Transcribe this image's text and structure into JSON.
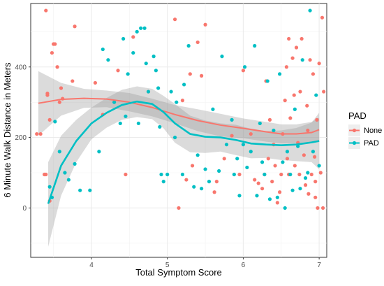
{
  "chart_data": {
    "type": "scatter",
    "title": "",
    "xlabel": "Total Symptom Score",
    "ylabel": "6 Minute Walk Distance in Meters",
    "xlim": [
      3.2,
      7.1
    ],
    "ylim": [
      -140,
      580
    ],
    "x_ticks": [
      4,
      5,
      6,
      7
    ],
    "y_ticks": [
      0,
      200,
      400
    ],
    "grid": true,
    "legend": {
      "title": "PAD",
      "placement": "right",
      "entries": [
        "None",
        "PAD"
      ]
    },
    "colors": {
      "None": "#F8766D",
      "PAD": "#00BFC4",
      "band": "#999999"
    },
    "series": [
      {
        "name": "None",
        "points": [
          [
            3.28,
            210
          ],
          [
            3.33,
            210
          ],
          [
            3.38,
            95
          ],
          [
            3.4,
            95
          ],
          [
            3.4,
            560
          ],
          [
            3.42,
            325
          ],
          [
            3.42,
            320
          ],
          [
            3.45,
            250
          ],
          [
            3.45,
            20
          ],
          [
            3.48,
            440
          ],
          [
            3.5,
            465
          ],
          [
            3.52,
            465
          ],
          [
            3.55,
            400
          ],
          [
            3.58,
            300
          ],
          [
            3.6,
            340
          ],
          [
            3.62,
            310
          ],
          [
            3.75,
            360
          ],
          [
            3.78,
            515
          ],
          [
            4.05,
            355
          ],
          [
            4.15,
            265
          ],
          [
            4.35,
            390
          ],
          [
            4.45,
            95
          ],
          [
            4.55,
            485
          ],
          [
            4.75,
            330
          ],
          [
            5.1,
            535
          ],
          [
            5.15,
            0
          ],
          [
            5.2,
            305
          ],
          [
            5.25,
            80
          ],
          [
            5.3,
            380
          ],
          [
            5.33,
            120
          ],
          [
            5.4,
            470
          ],
          [
            5.45,
            375
          ],
          [
            5.5,
            520
          ],
          [
            5.62,
            45
          ],
          [
            5.65,
            75
          ],
          [
            5.75,
            140
          ],
          [
            5.85,
            205
          ],
          [
            5.95,
            95
          ],
          [
            6.0,
            390
          ],
          [
            6.1,
            210
          ],
          [
            6.15,
            80
          ],
          [
            6.2,
            70
          ],
          [
            6.25,
            55
          ],
          [
            6.28,
            95
          ],
          [
            6.3,
            360
          ],
          [
            6.33,
            140
          ],
          [
            6.35,
            250
          ],
          [
            6.38,
            75
          ],
          [
            6.4,
            180
          ],
          [
            6.42,
            120
          ],
          [
            6.45,
            15
          ],
          [
            6.48,
            45
          ],
          [
            6.5,
            95
          ],
          [
            6.52,
            210
          ],
          [
            6.55,
            305
          ],
          [
            6.57,
            400
          ],
          [
            6.58,
            140
          ],
          [
            6.6,
            95
          ],
          [
            6.62,
            255
          ],
          [
            6.65,
            425
          ],
          [
            6.67,
            320
          ],
          [
            6.68,
            120
          ],
          [
            6.7,
            455
          ],
          [
            6.72,
            185
          ],
          [
            6.74,
            95
          ],
          [
            6.75,
            330
          ],
          [
            6.77,
            480
          ],
          [
            6.8,
            150
          ],
          [
            6.82,
            65
          ],
          [
            6.84,
            290
          ],
          [
            6.86,
            40
          ],
          [
            6.88,
            420
          ],
          [
            6.9,
            95
          ],
          [
            6.92,
            380
          ],
          [
            6.94,
            145
          ],
          [
            6.95,
            30
          ],
          [
            6.97,
            250
          ],
          [
            6.98,
            0
          ],
          [
            7.0,
            410
          ],
          [
            7.02,
            100
          ],
          [
            7.04,
            540
          ],
          [
            7.05,
            0
          ],
          [
            7.06,
            330
          ],
          [
            6.6,
            480
          ],
          [
            6.85,
            220
          ],
          [
            6.95,
            75
          ]
        ]
      },
      {
        "name": "PAD",
        "points": [
          [
            3.45,
            60
          ],
          [
            3.48,
            30
          ],
          [
            3.52,
            245
          ],
          [
            3.58,
            160
          ],
          [
            3.65,
            100
          ],
          [
            3.7,
            80
          ],
          [
            3.78,
            125
          ],
          [
            3.85,
            50
          ],
          [
            3.98,
            50
          ],
          [
            4.1,
            160
          ],
          [
            4.15,
            450
          ],
          [
            4.22,
            420
          ],
          [
            4.3,
            300
          ],
          [
            4.38,
            240
          ],
          [
            4.42,
            480
          ],
          [
            4.45,
            260
          ],
          [
            4.48,
            380
          ],
          [
            4.55,
            440
          ],
          [
            4.6,
            500
          ],
          [
            4.62,
            240
          ],
          [
            4.65,
            510
          ],
          [
            4.7,
            510
          ],
          [
            4.72,
            410
          ],
          [
            4.75,
            330
          ],
          [
            4.82,
            430
          ],
          [
            4.85,
            390
          ],
          [
            4.88,
            340
          ],
          [
            4.9,
            230
          ],
          [
            4.92,
            95
          ],
          [
            4.95,
            75
          ],
          [
            5.0,
            95
          ],
          [
            5.05,
            330
          ],
          [
            5.1,
            200
          ],
          [
            5.12,
            300
          ],
          [
            5.2,
            95
          ],
          [
            5.22,
            350
          ],
          [
            5.28,
            460
          ],
          [
            5.35,
            60
          ],
          [
            5.4,
            150
          ],
          [
            5.45,
            55
          ],
          [
            5.5,
            110
          ],
          [
            5.55,
            75
          ],
          [
            5.6,
            280
          ],
          [
            5.68,
            105
          ],
          [
            5.72,
            430
          ],
          [
            5.78,
            180
          ],
          [
            5.85,
            250
          ],
          [
            5.88,
            95
          ],
          [
            5.92,
            140
          ],
          [
            5.95,
            35
          ],
          [
            6.0,
            180
          ],
          [
            6.02,
            400
          ],
          [
            6.05,
            115
          ],
          [
            6.1,
            160
          ],
          [
            6.15,
            460
          ],
          [
            6.18,
            35
          ],
          [
            6.22,
            240
          ],
          [
            6.25,
            130
          ],
          [
            6.28,
            95
          ],
          [
            6.32,
            360
          ],
          [
            6.35,
            25
          ],
          [
            6.4,
            220
          ],
          [
            6.45,
            30
          ],
          [
            6.48,
            380
          ],
          [
            6.52,
            130
          ],
          [
            6.55,
            0
          ],
          [
            6.58,
            160
          ],
          [
            6.62,
            95
          ],
          [
            6.65,
            50
          ],
          [
            6.68,
            280
          ],
          [
            6.72,
            175
          ],
          [
            6.75,
            55
          ],
          [
            6.78,
            420
          ],
          [
            6.82,
            85
          ],
          [
            6.85,
            100
          ],
          [
            6.88,
            560
          ],
          [
            6.92,
            160
          ],
          [
            6.96,
            320
          ],
          [
            7.0,
            120
          ]
        ]
      }
    ],
    "smooth_lines": [
      {
        "name": "None",
        "points": [
          [
            3.3,
            297
          ],
          [
            3.6,
            308
          ],
          [
            3.9,
            311
          ],
          [
            4.2,
            309
          ],
          [
            4.5,
            300
          ],
          [
            4.8,
            285
          ],
          [
            5.1,
            265
          ],
          [
            5.4,
            248
          ],
          [
            5.7,
            235
          ],
          [
            6.0,
            226
          ],
          [
            6.3,
            216
          ],
          [
            6.5,
            210
          ],
          [
            6.7,
            210
          ],
          [
            6.9,
            214
          ],
          [
            7.0,
            222
          ]
        ],
        "band_upper": [
          [
            3.3,
            388
          ],
          [
            3.6,
            355
          ],
          [
            3.9,
            338
          ],
          [
            4.2,
            333
          ],
          [
            4.5,
            326
          ],
          [
            4.8,
            310
          ],
          [
            5.1,
            292
          ],
          [
            5.4,
            280
          ],
          [
            5.7,
            267
          ],
          [
            6.0,
            254
          ],
          [
            6.3,
            244
          ],
          [
            6.5,
            237
          ],
          [
            6.7,
            237
          ],
          [
            6.9,
            244
          ],
          [
            7.0,
            256
          ]
        ],
        "band_lower": [
          [
            3.3,
            205
          ],
          [
            3.6,
            262
          ],
          [
            3.9,
            284
          ],
          [
            4.2,
            286
          ],
          [
            4.5,
            274
          ],
          [
            4.8,
            260
          ],
          [
            5.1,
            240
          ],
          [
            5.4,
            218
          ],
          [
            5.7,
            203
          ],
          [
            6.0,
            198
          ],
          [
            6.3,
            188
          ],
          [
            6.5,
            183
          ],
          [
            6.7,
            183
          ],
          [
            6.9,
            184
          ],
          [
            7.0,
            188
          ]
        ]
      },
      {
        "name": "PAD",
        "points": [
          [
            3.43,
            12
          ],
          [
            3.6,
            120
          ],
          [
            3.8,
            190
          ],
          [
            4.0,
            240
          ],
          [
            4.2,
            270
          ],
          [
            4.4,
            292
          ],
          [
            4.6,
            302
          ],
          [
            4.8,
            295
          ],
          [
            4.95,
            272
          ],
          [
            5.1,
            240
          ],
          [
            5.3,
            210
          ],
          [
            5.5,
            202
          ],
          [
            5.7,
            200
          ],
          [
            5.9,
            193
          ],
          [
            6.1,
            183
          ],
          [
            6.3,
            180
          ],
          [
            6.5,
            178
          ],
          [
            6.7,
            180
          ],
          [
            6.9,
            186
          ],
          [
            7.0,
            190
          ]
        ],
        "band_upper": [
          [
            3.43,
            130
          ],
          [
            3.6,
            205
          ],
          [
            3.8,
            250
          ],
          [
            4.0,
            285
          ],
          [
            4.2,
            312
          ],
          [
            4.4,
            335
          ],
          [
            4.6,
            345
          ],
          [
            4.8,
            338
          ],
          [
            4.95,
            318
          ],
          [
            5.1,
            295
          ],
          [
            5.3,
            262
          ],
          [
            5.5,
            248
          ],
          [
            5.7,
            240
          ],
          [
            5.9,
            236
          ],
          [
            6.1,
            225
          ],
          [
            6.3,
            218
          ],
          [
            6.5,
            220
          ],
          [
            6.7,
            227
          ],
          [
            6.9,
            242
          ],
          [
            7.0,
            270
          ]
        ],
        "band_lower": [
          [
            3.43,
            -110
          ],
          [
            3.6,
            35
          ],
          [
            3.8,
            130
          ],
          [
            4.0,
            195
          ],
          [
            4.2,
            228
          ],
          [
            4.4,
            250
          ],
          [
            4.6,
            258
          ],
          [
            4.8,
            252
          ],
          [
            4.95,
            226
          ],
          [
            5.1,
            185
          ],
          [
            5.3,
            158
          ],
          [
            5.5,
            156
          ],
          [
            5.7,
            160
          ],
          [
            5.9,
            150
          ],
          [
            6.1,
            141
          ],
          [
            6.3,
            142
          ],
          [
            6.5,
            136
          ],
          [
            6.7,
            133
          ],
          [
            6.9,
            130
          ],
          [
            7.0,
            110
          ]
        ]
      }
    ]
  }
}
